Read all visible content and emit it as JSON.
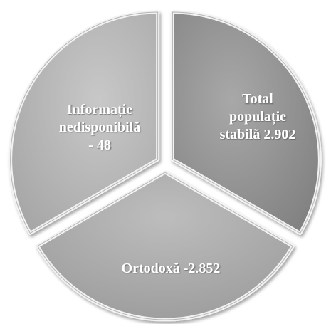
{
  "nodes": [
    {
      "lines": [
        "Total",
        "populație",
        "stabilă 2.902"
      ]
    },
    {
      "lines": [
        "Ortodoxă -2.852"
      ]
    },
    {
      "lines": [
        "Informație",
        "nedisponibilă",
        "- 48"
      ]
    }
  ]
}
